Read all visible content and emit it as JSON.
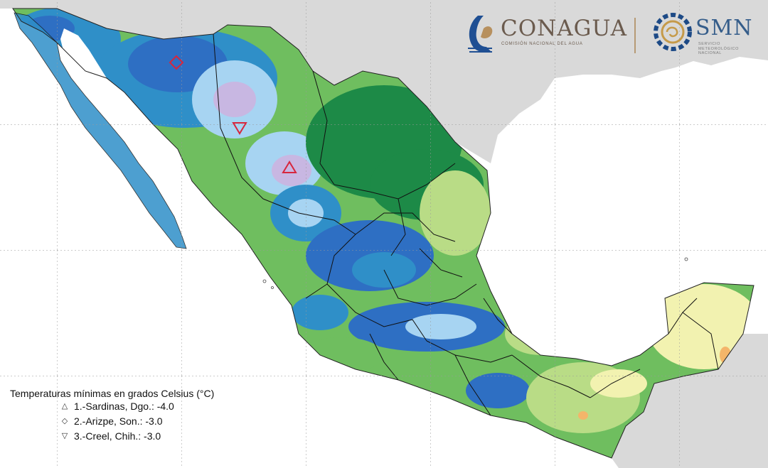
{
  "logos": {
    "conagua": {
      "name": "CONAGUA",
      "subtitle": "COMISIÓN NACIONAL DEL AGUA"
    },
    "smn": {
      "name": "SMN",
      "subtitle_lines": [
        "SERVICIO",
        "METEOROLÓGICO",
        "NACIONAL"
      ]
    }
  },
  "legend": {
    "title": "Temperaturas mínimas en grados Celsius (°C)",
    "items": [
      {
        "marker": "triangle-up",
        "label": "1.-Sardinas, Dgo.: -4.0",
        "value": -4.0
      },
      {
        "marker": "diamond",
        "label": "2.-Arizpe, Son.: -3.0",
        "value": -3.0
      },
      {
        "marker": "triangle-down",
        "label": "3.-Creel, Chih.: -3.0",
        "value": -3.0
      }
    ]
  },
  "colors": {
    "background_land": "#d9d9d9",
    "water": "#ffffff",
    "very_cold": "#c8b7e2",
    "cold": "#a7d4f2",
    "cool": "#2e6fc3",
    "cool_mid": "#2f8fc8",
    "mild": "#1d8a47",
    "mild_light": "#6fbe5f",
    "warm": "#b9dc86",
    "warmer": "#f2f2b0",
    "hot": "#f4b56a",
    "station_marker": "#d7263d"
  }
}
